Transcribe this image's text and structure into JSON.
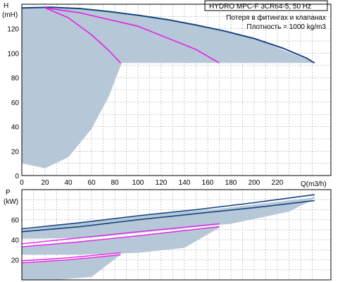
{
  "title": "HYDRO MPC-F 3CR64-5, 50 Hz",
  "notes": [
    "Потеря в фитингах и клапанах",
    "Плотность = 1000 kg/m3"
  ],
  "colors": {
    "background": "#ffffff",
    "grid": "#a8a8a8",
    "area": "#b6c8d8",
    "main_curve": "#15457f",
    "pink_curve": "#e61fe6"
  },
  "chart_data": [
    {
      "type": "line",
      "xlabel": "Q(m3/h)",
      "ylabel": "H",
      "yunit": "(mH)",
      "xlim": [
        0,
        260
      ],
      "ylim": [
        0,
        140
      ],
      "x_ticks": [
        0,
        20,
        40,
        60,
        80,
        100,
        120,
        140,
        160,
        180,
        200,
        220
      ],
      "y_ticks": [
        0,
        20,
        40,
        60,
        80,
        100,
        120
      ],
      "grid": true,
      "area_upper": [
        [
          0,
          137
        ],
        [
          50,
          137
        ],
        [
          100,
          131
        ],
        [
          150,
          123
        ],
        [
          200,
          112
        ],
        [
          240,
          97
        ],
        [
          252,
          92
        ]
      ],
      "area_lower": [
        [
          0,
          10
        ],
        [
          20,
          6
        ],
        [
          40,
          15
        ],
        [
          60,
          38
        ],
        [
          75,
          65
        ],
        [
          86,
          92
        ]
      ],
      "area_floor": 92,
      "series": [
        {
          "role": "main",
          "x": [
            0,
            25,
            50,
            75,
            100,
            125,
            150,
            175,
            200,
            225,
            245,
            252
          ],
          "y": [
            137,
            137.5,
            136.5,
            134,
            131,
            127.5,
            123,
            118,
            112,
            104,
            96,
            92
          ]
        },
        {
          "role": "pink",
          "x": [
            20,
            50,
            100,
            150,
            170
          ],
          "y": [
            137,
            133,
            122,
            103,
            92
          ]
        },
        {
          "role": "pink",
          "x": [
            20,
            40,
            60,
            75,
            85
          ],
          "y": [
            137,
            129,
            115,
            102,
            92
          ]
        }
      ]
    },
    {
      "type": "line",
      "xlabel": "Q(m3/h)",
      "ylabel": "P",
      "yunit": "(kW)",
      "xlim": [
        0,
        260
      ],
      "ylim": [
        0,
        90
      ],
      "y_ticks": [
        20,
        40,
        60
      ],
      "grid": true,
      "bands": [
        {
          "upper": [
            [
              0,
              50
            ],
            [
              100,
              64
            ],
            [
              170,
              71
            ],
            [
              250,
              82
            ],
            [
              252,
              84
            ]
          ],
          "lower": [
            [
              0,
              41
            ],
            [
              60,
              42
            ],
            [
              120,
              49
            ],
            [
              180,
              56
            ],
            [
              230,
              68
            ],
            [
              252,
              81
            ]
          ]
        },
        {
          "upper": [
            [
              0,
              33
            ],
            [
              50,
              38
            ],
            [
              100,
              44
            ],
            [
              170,
              54
            ]
          ],
          "lower": [
            [
              0,
              25
            ],
            [
              50,
              25
            ],
            [
              100,
              27
            ],
            [
              140,
              32
            ],
            [
              170,
              52
            ]
          ]
        },
        {
          "upper": [
            [
              0,
              17
            ],
            [
              40,
              20
            ],
            [
              85,
              26
            ]
          ],
          "lower": [
            [
              0,
              0
            ],
            [
              30,
              0
            ],
            [
              60,
              3
            ],
            [
              85,
              25
            ]
          ]
        }
      ],
      "series": [
        {
          "role": "main",
          "x": [
            0,
            50,
            100,
            150,
            200,
            252
          ],
          "y": [
            51,
            57,
            64,
            70,
            77,
            85
          ]
        },
        {
          "role": "main",
          "x": [
            0,
            50,
            100,
            150,
            200,
            252
          ],
          "y": [
            48,
            53,
            60,
            66,
            72,
            79
          ]
        },
        {
          "role": "pink",
          "x": [
            0,
            50,
            100,
            170
          ],
          "y": [
            36,
            42,
            48,
            56
          ]
        },
        {
          "role": "pink",
          "x": [
            0,
            50,
            100,
            170
          ],
          "y": [
            33,
            38,
            44,
            53
          ]
        },
        {
          "role": "pink",
          "x": [
            0,
            40,
            85
          ],
          "y": [
            19,
            22,
            27
          ]
        },
        {
          "role": "pink",
          "x": [
            0,
            40,
            85
          ],
          "y": [
            17,
            20,
            25
          ]
        }
      ]
    }
  ]
}
